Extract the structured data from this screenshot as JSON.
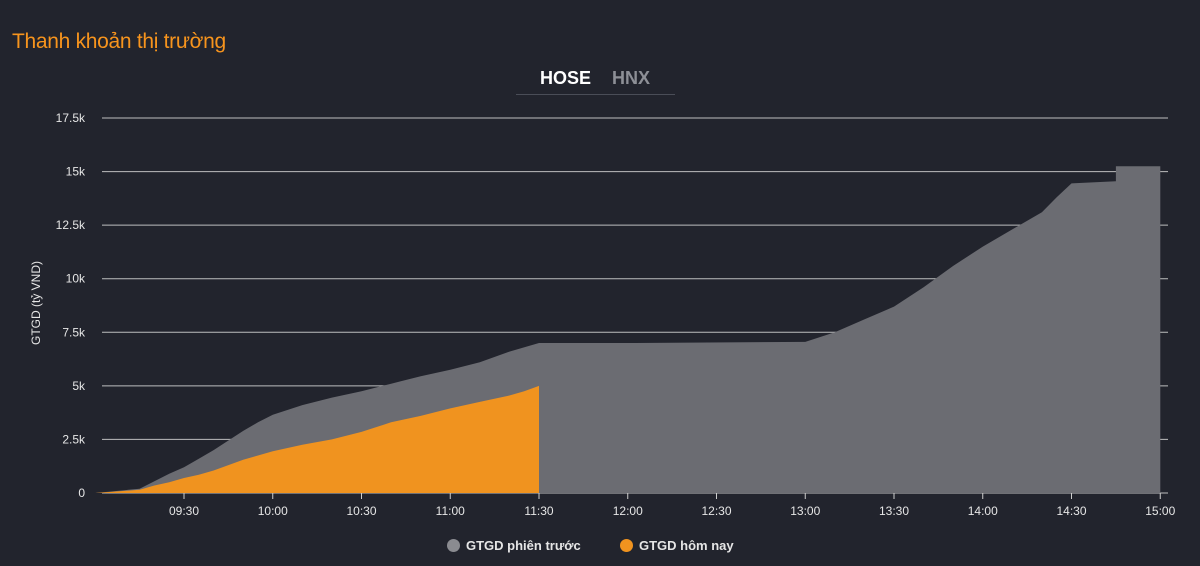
{
  "page": {
    "title": "Thanh khoản thị trường",
    "tabs": [
      {
        "label": "HOSE",
        "active": true
      },
      {
        "label": "HNX",
        "active": false
      }
    ]
  },
  "colors": {
    "background": "#22242d",
    "title": "#f7941d",
    "previous": "#6b6c72",
    "today": "#f0931f",
    "grid": "#d9d9d9",
    "axis_text": "#e6e6e6"
  },
  "chart_data": {
    "type": "area",
    "ylabel": "GTGD (tỷ VND)",
    "xlabel": "",
    "ylim": [
      0,
      17.5
    ],
    "y_unit": "k",
    "yticks": [
      {
        "value": 0,
        "label": "0"
      },
      {
        "value": 2.5,
        "label": "2.5k"
      },
      {
        "value": 5,
        "label": "5k"
      },
      {
        "value": 7.5,
        "label": "7.5k"
      },
      {
        "value": 10,
        "label": "10k"
      },
      {
        "value": 12.5,
        "label": "12.5k"
      },
      {
        "value": 15,
        "label": "15k"
      },
      {
        "value": 17.5,
        "label": "17.5k"
      }
    ],
    "xlim": [
      "09:00",
      "15:05"
    ],
    "xticks": [
      "09:30",
      "10:00",
      "10:30",
      "11:00",
      "11:30",
      "12:00",
      "12:30",
      "13:00",
      "13:30",
      "14:00",
      "14:30",
      "15:00"
    ],
    "grid": true,
    "legend_position": "bottom",
    "series": [
      {
        "name": "GTGD phiên trước",
        "color": "#6b6c72",
        "points": [
          [
            "09:00",
            0
          ],
          [
            "09:15",
            0.2
          ],
          [
            "09:20",
            0.55
          ],
          [
            "09:25",
            0.9
          ],
          [
            "09:30",
            1.2
          ],
          [
            "09:35",
            1.6
          ],
          [
            "09:40",
            2.0
          ],
          [
            "09:45",
            2.45
          ],
          [
            "09:50",
            2.9
          ],
          [
            "09:55",
            3.3
          ],
          [
            "10:00",
            3.65
          ],
          [
            "10:10",
            4.1
          ],
          [
            "10:20",
            4.45
          ],
          [
            "10:30",
            4.75
          ],
          [
            "10:40",
            5.1
          ],
          [
            "10:50",
            5.45
          ],
          [
            "11:00",
            5.75
          ],
          [
            "11:10",
            6.1
          ],
          [
            "11:20",
            6.6
          ],
          [
            "11:30",
            7.0
          ],
          [
            "12:00",
            7.0
          ],
          [
            "13:00",
            7.05
          ],
          [
            "13:10",
            7.5
          ],
          [
            "13:20",
            8.1
          ],
          [
            "13:30",
            8.7
          ],
          [
            "13:40",
            9.6
          ],
          [
            "13:50",
            10.6
          ],
          [
            "14:00",
            11.5
          ],
          [
            "14:10",
            12.3
          ],
          [
            "14:20",
            13.1
          ],
          [
            "14:25",
            13.8
          ],
          [
            "14:30",
            14.45
          ],
          [
            "14:45",
            14.55
          ],
          [
            "14:45",
            15.25
          ],
          [
            "15:00",
            15.25
          ],
          [
            "15:00",
            0
          ]
        ]
      },
      {
        "name": "GTGD hôm nay",
        "color": "#f0931f",
        "points": [
          [
            "09:00",
            0
          ],
          [
            "09:15",
            0.15
          ],
          [
            "09:20",
            0.35
          ],
          [
            "09:25",
            0.5
          ],
          [
            "09:30",
            0.7
          ],
          [
            "09:35",
            0.85
          ],
          [
            "09:40",
            1.05
          ],
          [
            "09:45",
            1.3
          ],
          [
            "09:50",
            1.55
          ],
          [
            "09:55",
            1.75
          ],
          [
            "10:00",
            1.95
          ],
          [
            "10:10",
            2.25
          ],
          [
            "10:20",
            2.5
          ],
          [
            "10:30",
            2.85
          ],
          [
            "10:40",
            3.3
          ],
          [
            "10:50",
            3.6
          ],
          [
            "11:00",
            3.95
          ],
          [
            "11:10",
            4.25
          ],
          [
            "11:20",
            4.55
          ],
          [
            "11:25",
            4.75
          ],
          [
            "11:30",
            5.0
          ],
          [
            "11:30",
            0
          ]
        ]
      }
    ]
  }
}
